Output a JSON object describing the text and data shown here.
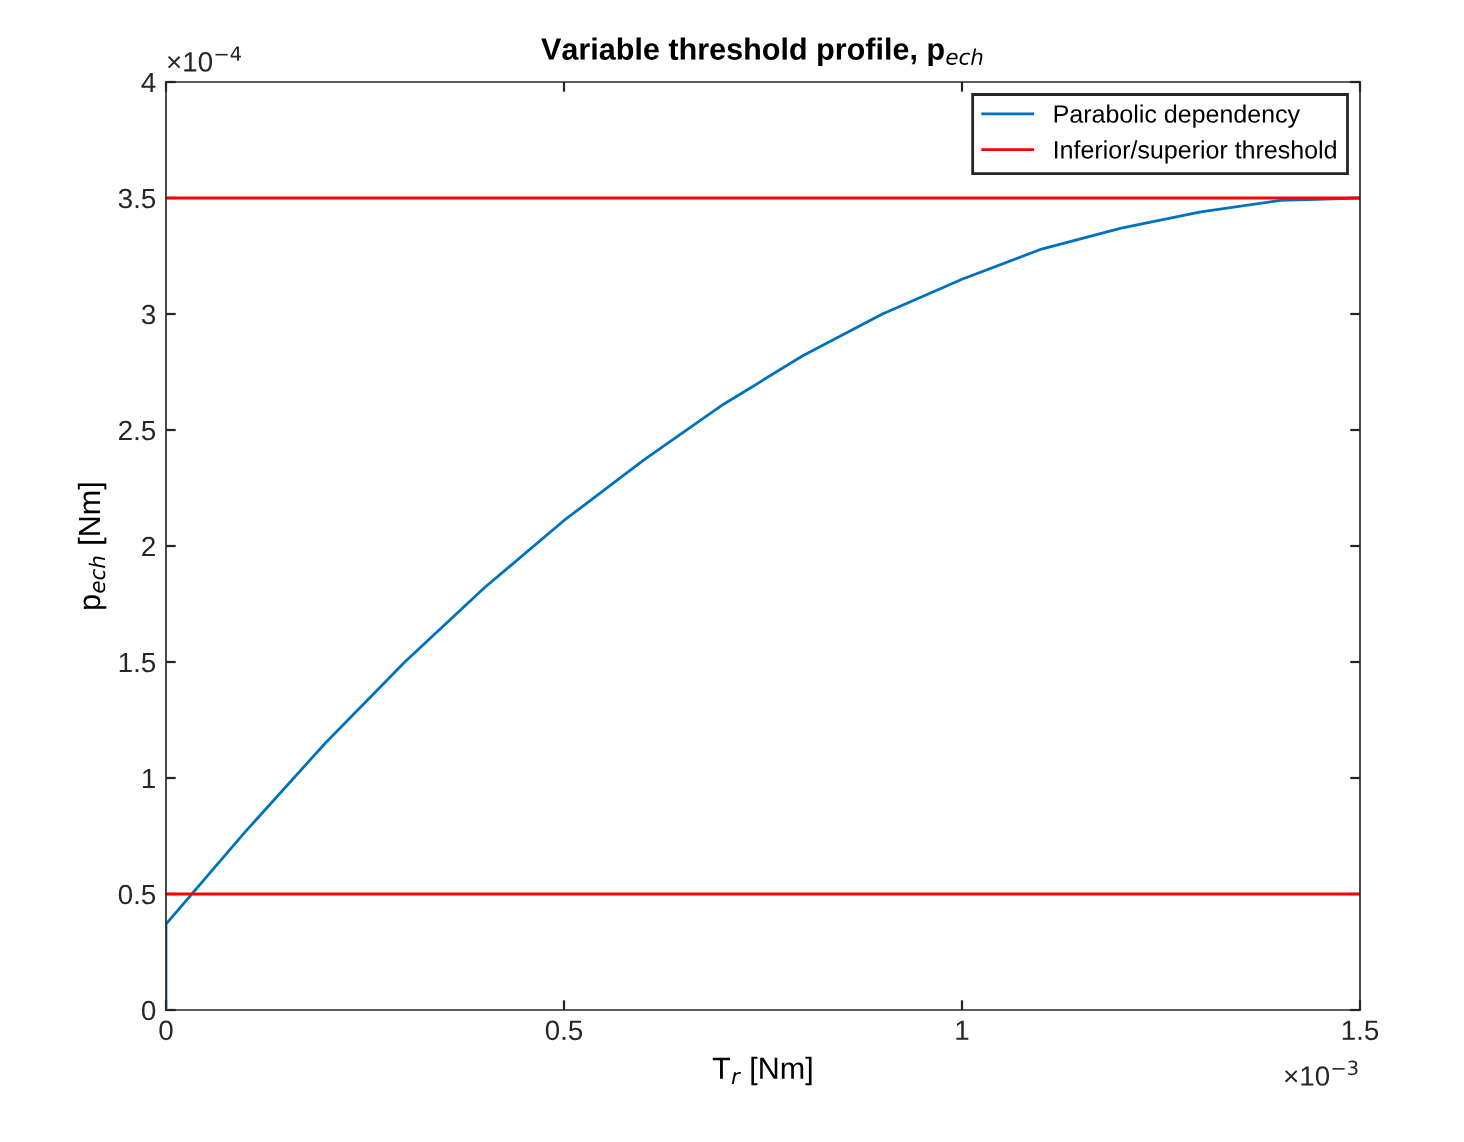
{
  "chart_data": {
    "type": "line",
    "title": "Variable threshold profile, p$_{ech}$",
    "xlabel": "T$_{r}$ [Nm]",
    "ylabel": "p$_{ech}$ [Nm]",
    "annotations": [
      "×10$^{−4}$",
      "×10$^{−3}$"
    ],
    "series": [
      {
        "name": "Parabolic dependency",
        "color": "#0072bd",
        "x": [
          0,
          0,
          0.1,
          0.2,
          0.3,
          0.4,
          0.5,
          0.6,
          0.7,
          0.8,
          0.9,
          1.0,
          1.1,
          1.2,
          1.3,
          1.4,
          1.5
        ],
        "values": [
          0,
          0.37,
          0.77,
          1.15,
          1.5,
          1.82,
          2.11,
          2.37,
          2.61,
          2.82,
          3.0,
          3.15,
          3.28,
          3.37,
          3.44,
          3.49,
          3.5
        ]
      }
    ],
    "ref_lines": [
      {
        "axis": "y",
        "value": 0.5,
        "label": "Inferior/superior threshold",
        "color": "#ff0000"
      },
      {
        "axis": "y",
        "value": 3.5,
        "color": "#ff0000"
      }
    ],
    "xlim": [
      0,
      1.5
    ],
    "xticks": [
      0,
      0.5,
      1,
      1.5
    ],
    "ylim": [
      0,
      4
    ],
    "yticks": [
      0,
      0.5,
      1,
      1.5,
      2,
      2.5,
      3,
      3.5,
      4
    ],
    "grid": false,
    "legend": "top right",
    "line_style": "solid",
    "marker": "none"
  }
}
